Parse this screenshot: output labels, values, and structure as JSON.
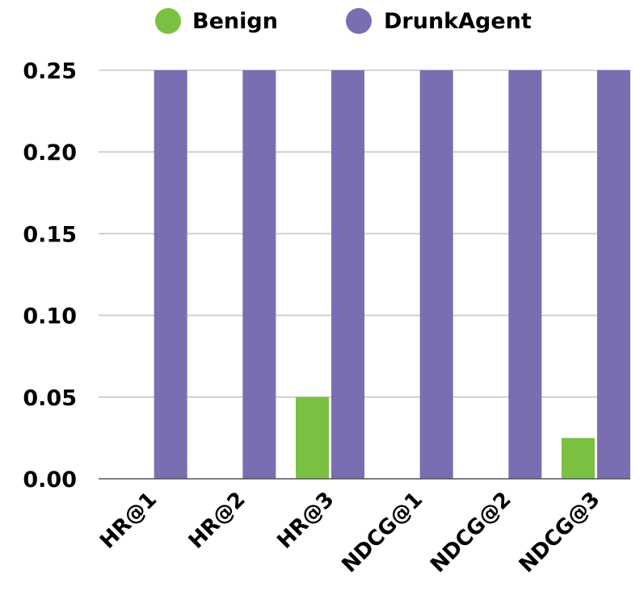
{
  "chart_data": {
    "type": "bar",
    "categories": [
      "HR@1",
      "HR@2",
      "HR@3",
      "NDCG@1",
      "NDCG@2",
      "NDCG@3"
    ],
    "series": [
      {
        "name": "Benign",
        "values": [
          0,
          0,
          0.05,
          0,
          0,
          0.025
        ],
        "color": "#7ac142"
      },
      {
        "name": "DrunkAgent",
        "values": [
          0.25,
          0.25,
          0.25,
          0.25,
          0.25,
          0.25
        ],
        "color": "#7b6db2"
      }
    ],
    "yticks": [
      "0.00",
      "0.05",
      "0.10",
      "0.15",
      "0.20",
      "0.25"
    ],
    "ylim": [
      0,
      0.25
    ],
    "grid": true,
    "legend_position": "top-center",
    "title": "",
    "xlabel": "",
    "ylabel": ""
  }
}
